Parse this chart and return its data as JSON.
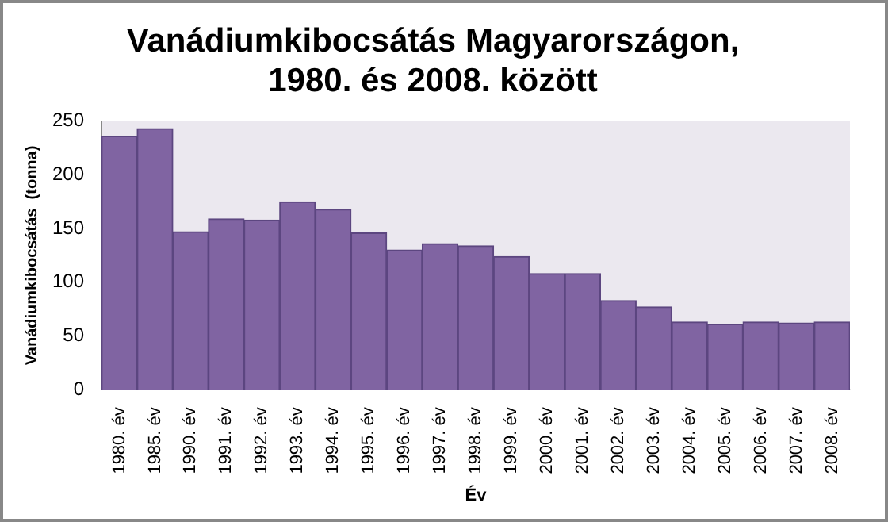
{
  "chart_data": {
    "type": "bar",
    "title": [
      "Vanádiumkibocsátás Magyarországon,",
      "1980. és 2008. között"
    ],
    "xlabel": "Év",
    "ylabel": "Vanádiumkibocsátás  (tonna)",
    "categories": [
      "1980. év",
      "1985. év",
      "1990. év",
      "1991. év",
      "1992. év",
      "1993. év",
      "1994. év",
      "1995. év",
      "1996. év",
      "1997. év",
      "1998. év",
      "1999. év",
      "2000. év",
      "2001. év",
      "2002. év",
      "2003. év",
      "2004. év",
      "2005. év",
      "2006. év",
      "2007. év",
      "2008. év"
    ],
    "values": [
      236,
      243,
      147,
      159,
      158,
      175,
      168,
      146,
      130,
      136,
      134,
      124,
      108,
      108,
      83,
      77,
      63,
      61,
      63,
      62,
      63
    ],
    "color": "#8064a2",
    "ylim": [
      0,
      250
    ],
    "yticks": [
      0,
      50,
      100,
      150,
      200,
      250
    ],
    "grid": false,
    "legend": false
  }
}
